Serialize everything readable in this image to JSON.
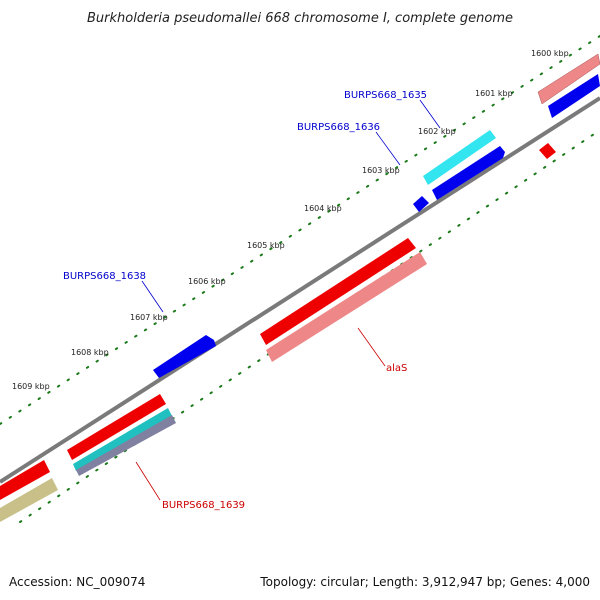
{
  "title": "Burkholderia pseudomallei 668 chromosome I, complete genome",
  "footer": {
    "accession": "Accession: NC_009074",
    "topology": "Topology: circular; Length: 3,912,947 bp; Genes: 4,000"
  },
  "ticks": [
    "1600 kbp",
    "1601 kbp",
    "1602 kbp",
    "1603 kbp",
    "1604 kbp",
    "1605 kbp",
    "1606 kbp",
    "1607 kbp",
    "1608 kbp",
    "1609 kbp"
  ],
  "gene_labels": {
    "g1635": "BURPS668_1635",
    "g1636": "BURPS668_1636",
    "g1638": "BURPS668_1638",
    "alaS": "alaS",
    "g1639": "BURPS668_1639"
  },
  "colors": {
    "backbone": "#808080",
    "forward_gene": "#0000ee",
    "reverse_gene": "#ee0000",
    "cds_forward": "#00e5ee",
    "cds_reverse": "#ee8080",
    "tick_major": "#1a7a1a",
    "label_forward": "#0000cc",
    "label_reverse": "#cc0000"
  }
}
